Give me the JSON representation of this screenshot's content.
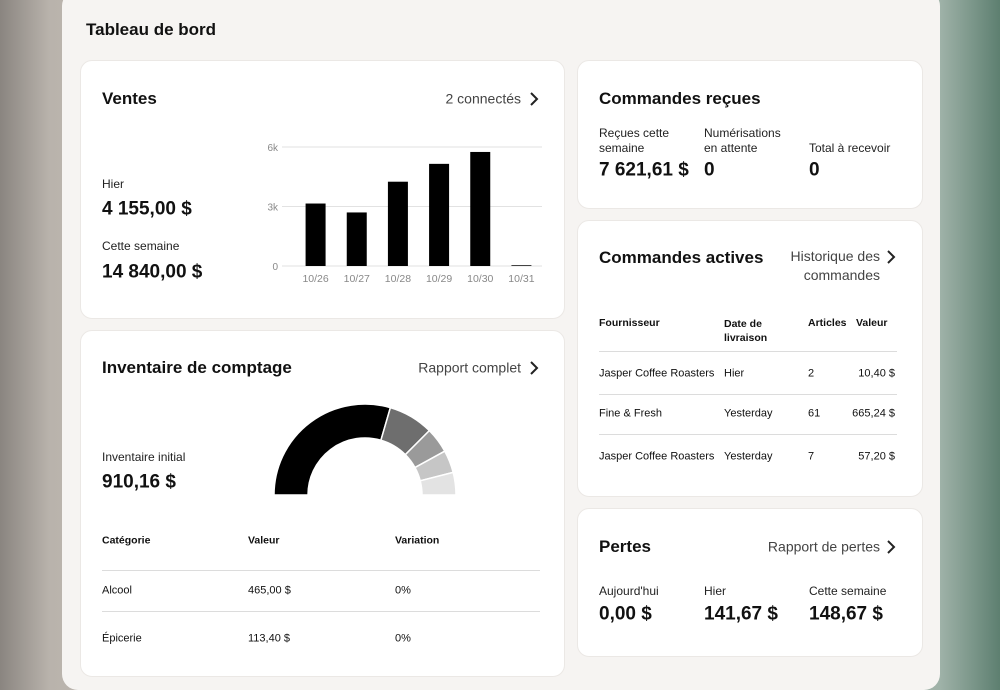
{
  "header": {
    "title": "Tableau de bord"
  },
  "ventes": {
    "title": "Ventes",
    "link": "2 connectés",
    "hier_label": "Hier",
    "hier_value": "4 155,00 $",
    "semaine_label": "Cette semaine",
    "semaine_value": "14 840,00 $",
    "chart": {
      "type": "bar",
      "categories": [
        "10/26",
        "10/27",
        "10/28",
        "10/29",
        "10/30",
        "10/31"
      ],
      "values": [
        3150,
        2700,
        4250,
        5150,
        5750,
        0
      ],
      "color": "#000000",
      "ylim": [
        0,
        6000
      ],
      "yticks": [
        0,
        {
          "value": 3000,
          "label": "3k"
        },
        {
          "value": 6000,
          "label": "6k"
        }
      ],
      "grid": true
    }
  },
  "inventaire": {
    "title": "Inventaire de comptage",
    "link": "Rapport complet",
    "initial_label": "Inventaire initial",
    "initial_value": "910,16 $",
    "gauge": {
      "type": "pie",
      "values": [
        59,
        16,
        9,
        8,
        8
      ],
      "colors": [
        "#000000",
        "#6e6e6e",
        "#9a9a9a",
        "#c6c6c6",
        "#e3e3e3"
      ]
    },
    "table": {
      "columns": [
        "Catégorie",
        "Valeur",
        "Variation"
      ],
      "rows": [
        [
          "Alcool",
          "465,00 $",
          "0%"
        ],
        [
          "Épicerie",
          "113,40 $",
          "0%"
        ]
      ]
    }
  },
  "commandes_recues": {
    "title": "Commandes reçues",
    "stats": [
      {
        "label": "Reçues cette semaine",
        "value": "7 621,61 $"
      },
      {
        "label": "Numérisations en attente",
        "value": "0"
      },
      {
        "label": "Total à recevoir",
        "value": "0"
      }
    ]
  },
  "commandes_actives": {
    "title": "Commandes actives",
    "link": "Historique des commandes",
    "table": {
      "columns": [
        "Fournisseur",
        "Date de livraison",
        "Articles",
        "Valeur"
      ],
      "rows": [
        [
          "Jasper Coffee Roasters",
          "Hier",
          "2",
          "10,40 $"
        ],
        [
          "Fine & Fresh",
          "Yesterday",
          "61",
          "665,24 $"
        ],
        [
          "Jasper Coffee Roasters",
          "Yesterday",
          "7",
          "57,20 $"
        ]
      ]
    }
  },
  "pertes": {
    "title": "Pertes",
    "link": "Rapport de pertes",
    "stats": [
      {
        "label": "Aujourd'hui",
        "value": "0,00 $"
      },
      {
        "label": "Hier",
        "value": "141,67 $"
      },
      {
        "label": "Cette semaine",
        "value": "148,67 $"
      }
    ]
  }
}
